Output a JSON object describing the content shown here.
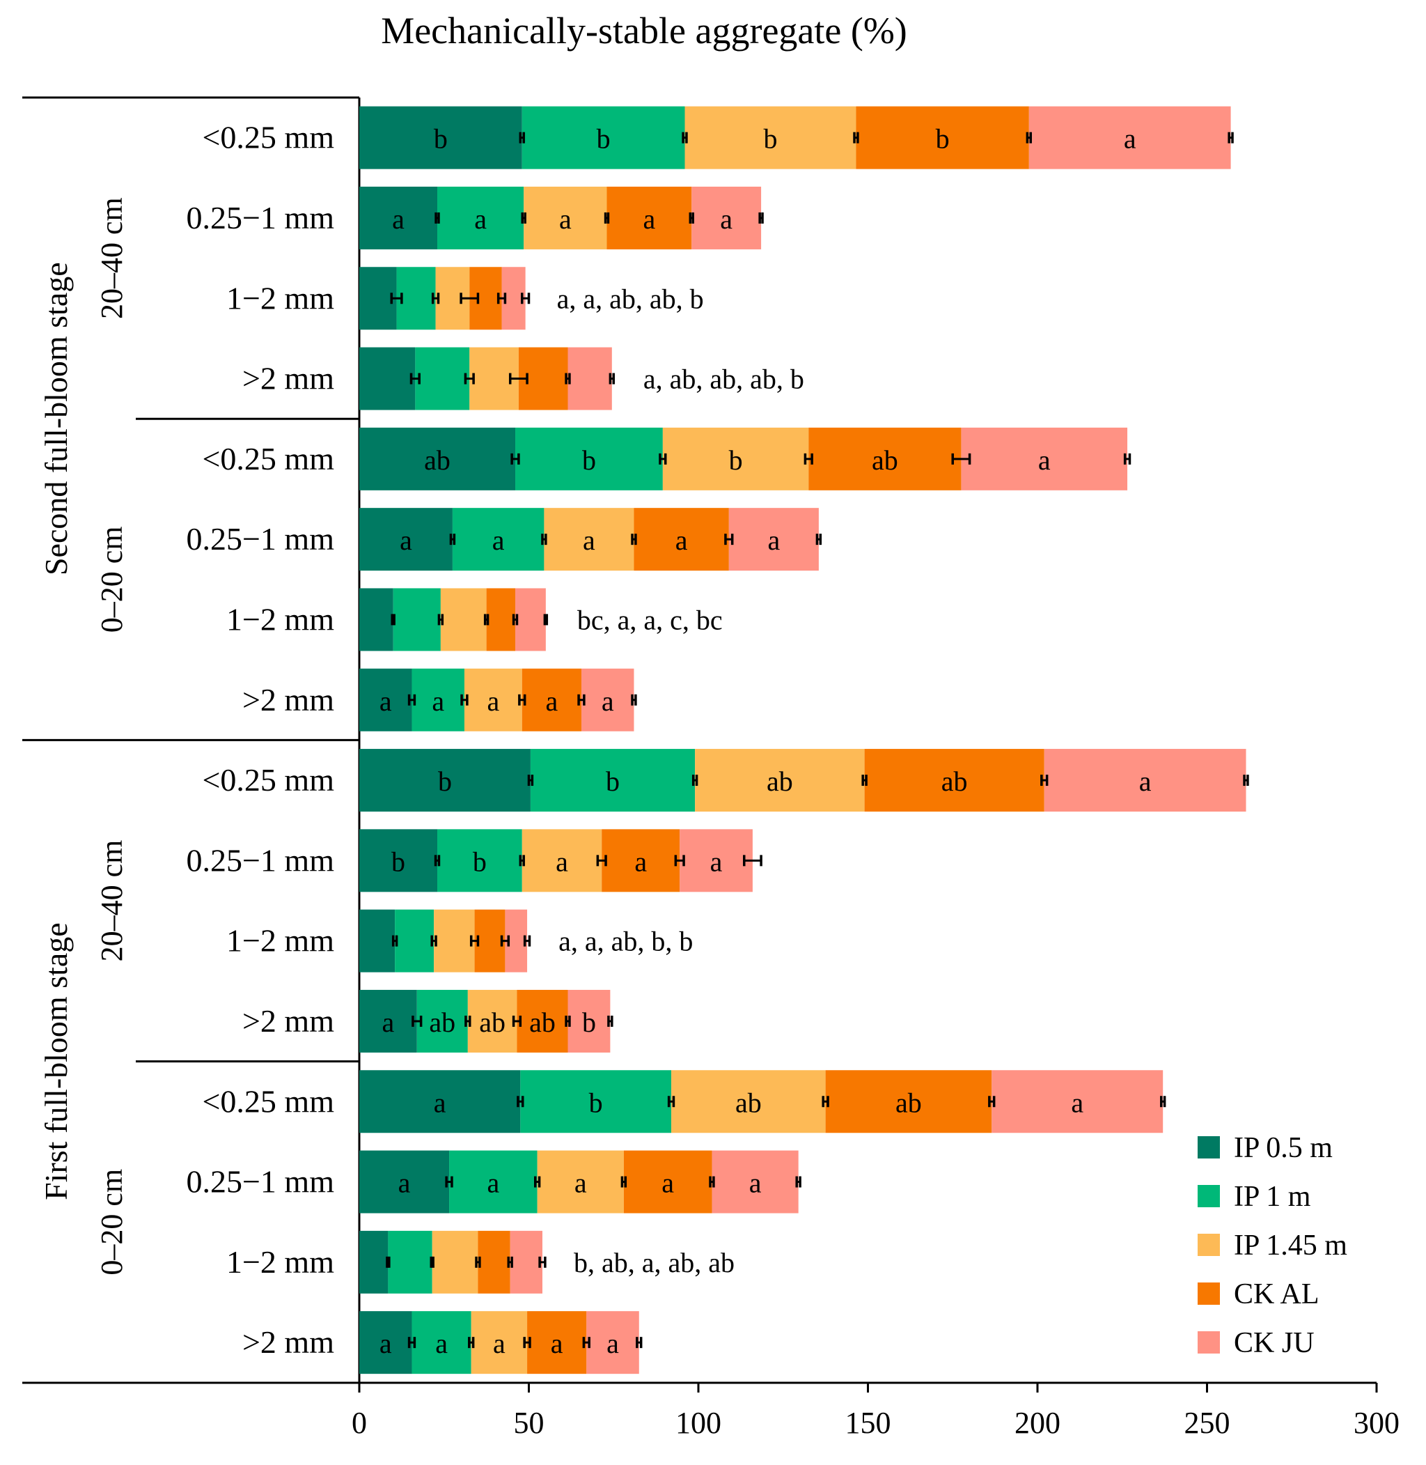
{
  "chart_data": {
    "type": "bar",
    "orientation": "horizontal",
    "stacked": true,
    "title": "Mechanically-stable aggregate (%)",
    "xlim": [
      0,
      300
    ],
    "x_ticks": [
      "0",
      "50",
      "100",
      "150",
      "200",
      "250",
      "300"
    ],
    "legend_position": "bottom-right",
    "series": [
      {
        "name": "IP 0.5 m",
        "color": "#007A62"
      },
      {
        "name": "IP 1 m",
        "color": "#00B878"
      },
      {
        "name": "IP 1.45 m",
        "color": "#FDBA56"
      },
      {
        "name": "CK AL",
        "color": "#F77800"
      },
      {
        "name": "CK JU",
        "color": "#FF9284"
      }
    ],
    "stages": [
      {
        "label": "Second full-bloom stage"
      },
      {
        "label": "First full-bloom stage"
      }
    ],
    "depths": [
      {
        "label": "20–40 cm"
      },
      {
        "label": "0–20 cm"
      },
      {
        "label": "20–40 cm"
      },
      {
        "label": "0–20 cm"
      }
    ],
    "rows": [
      {
        "category": "<0.25 mm",
        "values": [
          48,
          48,
          50.5,
          51,
          59.5
        ],
        "errors": [
          0.5,
          0.5,
          0.5,
          0.5,
          0.5
        ],
        "labels": [
          "b",
          "b",
          "b",
          "b",
          "a"
        ],
        "summary": ""
      },
      {
        "category": "0.25−1 mm",
        "values": [
          23,
          25.5,
          24.5,
          25,
          20.5
        ],
        "errors": [
          0.4,
          0.4,
          0.4,
          0.4,
          0.4
        ],
        "labels": [
          "a",
          "a",
          "a",
          "a",
          "a"
        ],
        "summary": ""
      },
      {
        "category": "1−2 mm",
        "values": [
          11,
          11.5,
          10,
          9.5,
          7
        ],
        "errors": [
          1.5,
          0.8,
          2.5,
          1,
          1
        ],
        "labels": [],
        "summary": "a, a, ab, ab, b"
      },
      {
        "category": ">2 mm",
        "values": [
          16.5,
          16,
          14.5,
          14.5,
          13
        ],
        "errors": [
          1.2,
          1.2,
          2.5,
          0.5,
          0.5
        ],
        "labels": [],
        "summary": "a, ab, ab, ab, b"
      },
      {
        "category": "<0.25 mm",
        "values": [
          46,
          43.5,
          43,
          45,
          49
        ],
        "errors": [
          1,
          0.8,
          1,
          2.5,
          0.7
        ],
        "labels": [
          "ab",
          "b",
          "b",
          "ab",
          "a"
        ],
        "summary": ""
      },
      {
        "category": "0.25−1 mm",
        "values": [
          27.5,
          27,
          26.5,
          28,
          26.5
        ],
        "errors": [
          0.5,
          0.5,
          0.5,
          1,
          0.5
        ],
        "labels": [
          "a",
          "a",
          "a",
          "a",
          "a"
        ],
        "summary": ""
      },
      {
        "category": "1−2 mm",
        "values": [
          10,
          14,
          13.5,
          8.5,
          9
        ],
        "errors": [
          0.3,
          0.5,
          0.4,
          0.5,
          0.3
        ],
        "labels": [],
        "summary": "bc, a, a, c, bc"
      },
      {
        "category": ">2 mm",
        "values": [
          15.5,
          15.5,
          17,
          17.5,
          15.5
        ],
        "errors": [
          0.8,
          0.8,
          0.8,
          0.8,
          0.5
        ],
        "labels": [
          "a",
          "a",
          "a",
          "a",
          "a"
        ],
        "summary": ""
      },
      {
        "category": "<0.25 mm",
        "values": [
          50.5,
          48.5,
          50,
          53,
          59.5
        ],
        "errors": [
          0.5,
          0.5,
          0.5,
          0.8,
          0.5
        ],
        "labels": [
          "b",
          "b",
          "ab",
          "ab",
          "a"
        ],
        "summary": ""
      },
      {
        "category": "0.25−1 mm",
        "values": [
          23,
          25,
          23.5,
          23,
          21.5
        ],
        "errors": [
          0.5,
          0.5,
          1.2,
          1.2,
          2.5
        ],
        "labels": [
          "b",
          "b",
          "a",
          "a",
          "a"
        ],
        "summary": ""
      },
      {
        "category": "1−2 mm",
        "values": [
          10.5,
          11.5,
          12,
          9,
          6.5
        ],
        "errors": [
          0.5,
          0.6,
          1,
          1,
          0.7
        ],
        "labels": [],
        "summary": "a, a, ab, b, b"
      },
      {
        "category": ">2 mm",
        "values": [
          17,
          15,
          14.5,
          15,
          12.5
        ],
        "errors": [
          1.2,
          0.6,
          1,
          0.5,
          0.5
        ],
        "labels": [
          "a",
          "ab",
          "ab",
          "ab",
          "b"
        ],
        "summary": ""
      },
      {
        "category": "<0.25 mm",
        "values": [
          47.5,
          44.5,
          45.5,
          49,
          50.5
        ],
        "errors": [
          0.7,
          0.7,
          0.7,
          0.7,
          0.5
        ],
        "labels": [
          "a",
          "b",
          "ab",
          "ab",
          "a"
        ],
        "summary": ""
      },
      {
        "category": "0.25−1 mm",
        "values": [
          26.5,
          26,
          25.5,
          26,
          25.5
        ],
        "errors": [
          0.8,
          0.6,
          0.5,
          0.5,
          0.5
        ],
        "labels": [
          "a",
          "a",
          "a",
          "a",
          "a"
        ],
        "summary": ""
      },
      {
        "category": "1−2 mm",
        "values": [
          8.5,
          13,
          13.5,
          9.5,
          9.5
        ],
        "errors": [
          0.3,
          0.3,
          0.5,
          0.5,
          0.8
        ],
        "labels": [],
        "summary": "b, ab, a, ab, ab"
      },
      {
        "category": ">2 mm",
        "values": [
          15.5,
          17.5,
          16.5,
          17.5,
          15.5
        ],
        "errors": [
          0.8,
          0.6,
          0.8,
          0.8,
          0.6
        ],
        "labels": [
          "a",
          "a",
          "a",
          "a",
          "a"
        ],
        "summary": ""
      }
    ]
  }
}
